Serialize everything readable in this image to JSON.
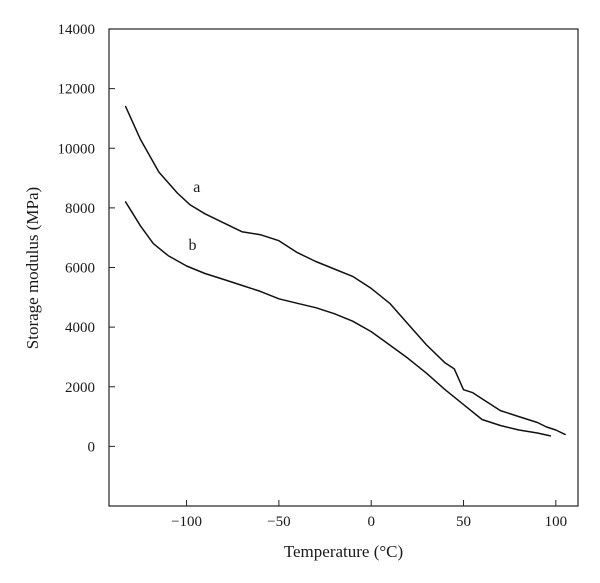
{
  "chart_data": {
    "type": "line",
    "xlabel": "Temperature (°C)",
    "ylabel": "Storage modulus (MPa)",
    "xlim": [
      -142,
      112
    ],
    "ylim": [
      -2000,
      14000
    ],
    "xticks": [
      -100,
      -50,
      0,
      50,
      100
    ],
    "yticks": [
      0,
      2000,
      4000,
      6000,
      8000,
      10000,
      12000,
      14000
    ],
    "xtick_labels": [
      "−100",
      "−50",
      "0",
      "50",
      "100"
    ],
    "ytick_labels": [
      "0",
      "2000",
      "4000",
      "6000",
      "8000",
      "10000",
      "12000",
      "14000"
    ],
    "grid": false,
    "series": [
      {
        "name": "a",
        "x": [
          -133,
          -125,
          -115,
          -105,
          -98,
          -90,
          -80,
          -70,
          -60,
          -50,
          -40,
          -30,
          -20,
          -10,
          0,
          10,
          20,
          30,
          40,
          45,
          50,
          55,
          60,
          70,
          80,
          90,
          95,
          100,
          105
        ],
        "y": [
          11400,
          10300,
          9200,
          8500,
          8100,
          7800,
          7500,
          7200,
          7100,
          6900,
          6500,
          6200,
          5950,
          5700,
          5300,
          4800,
          4100,
          3400,
          2800,
          2600,
          1900,
          1800,
          1600,
          1200,
          1000,
          800,
          650,
          550,
          400
        ]
      },
      {
        "name": "b",
        "x": [
          -133,
          -125,
          -118,
          -110,
          -100,
          -90,
          -80,
          -70,
          -60,
          -50,
          -40,
          -30,
          -20,
          -10,
          0,
          10,
          20,
          30,
          40,
          50,
          60,
          70,
          80,
          90,
          97
        ],
        "y": [
          8200,
          7400,
          6800,
          6400,
          6050,
          5800,
          5600,
          5400,
          5200,
          4950,
          4800,
          4650,
          4450,
          4200,
          3850,
          3400,
          2950,
          2450,
          1900,
          1400,
          900,
          700,
          550,
          450,
          350
        ]
      }
    ]
  }
}
